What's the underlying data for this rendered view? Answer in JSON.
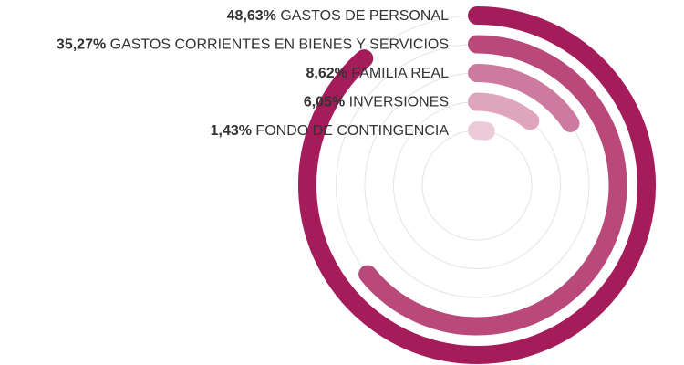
{
  "chart_data": {
    "type": "radial-bar",
    "series": [
      {
        "label": "GASTOS DE PERSONAL",
        "value_label": "48,63%",
        "value": 48.63,
        "color": "#a51c5a"
      },
      {
        "label": "GASTOS CORRIENTES EN BIENES Y SERVICIOS",
        "value_label": "35,27%",
        "value": 35.27,
        "color": "#b8497a"
      },
      {
        "label": "FAMILIA REAL",
        "value_label": "8,62%",
        "value": 8.62,
        "color": "#cd7aa0"
      },
      {
        "label": "INVERSIONES",
        "value_label": "6,05%",
        "value": 6.05,
        "color": "#dea5bd"
      },
      {
        "label": "FONDO DE CONTINGENCIA",
        "value_label": "1,43%",
        "value": 1.43,
        "color": "#ebcbd8"
      }
    ],
    "max_value": 55,
    "grid": true
  }
}
